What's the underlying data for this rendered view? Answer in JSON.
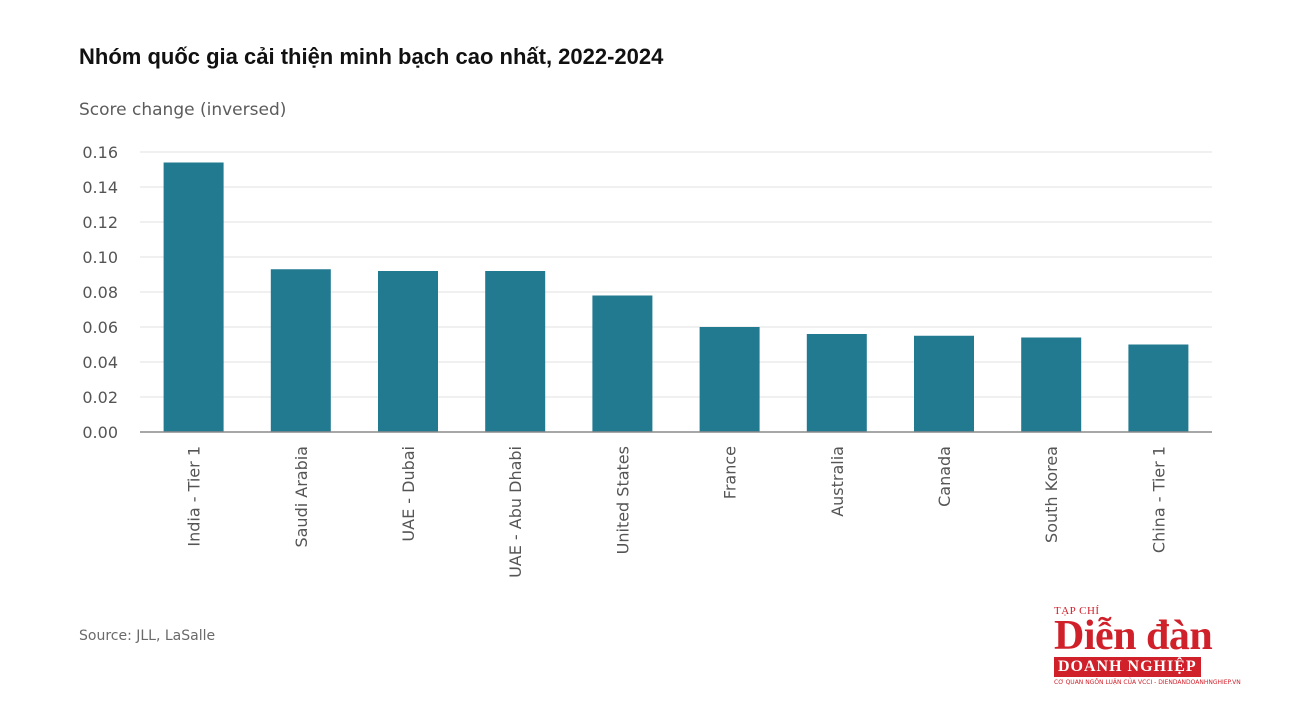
{
  "chart_data": {
    "type": "bar",
    "title": "Nhóm quốc gia cải thiện minh bạch cao nhất, 2022-2024",
    "ylabel": "Score change (inversed)",
    "xlabel": "",
    "categories": [
      "India - Tier 1",
      "Saudi Arabia",
      "UAE - Dubai",
      "UAE - Abu Dhabi",
      "United States",
      "France",
      "Australia",
      "Canada",
      "South Korea",
      "China - Tier 1"
    ],
    "values": [
      0.154,
      0.093,
      0.092,
      0.092,
      0.078,
      0.06,
      0.056,
      0.055,
      0.054,
      0.05
    ],
    "ylim": [
      0,
      0.16
    ],
    "yticks": [
      "0.00",
      "0.02",
      "0.04",
      "0.06",
      "0.08",
      "0.10",
      "0.12",
      "0.14",
      "0.16"
    ],
    "grid": true,
    "bar_color": "#227a91",
    "grid_color": "#e2e2e2"
  },
  "source": "Source: JLL, LaSalle",
  "logo": {
    "top": "TẠP CHÍ",
    "main": "Diễn đàn",
    "bar": "DOANH NGHIỆP",
    "tagline": "CƠ QUAN NGÔN LUẬN CỦA VCCI - DIENDANDOANHNGHIEP.VN",
    "color": "#d0202a"
  }
}
